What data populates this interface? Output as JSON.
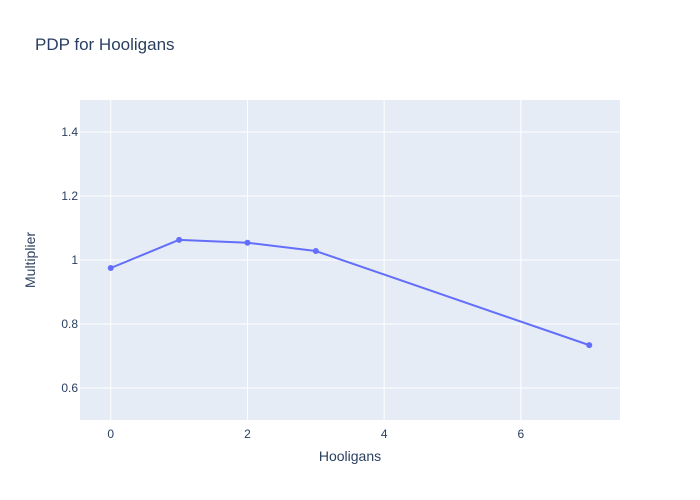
{
  "chart_data": {
    "type": "line",
    "title": "PDP for Hooligans",
    "xlabel": "Hooligans",
    "ylabel": "Multiplier",
    "xlim": [
      -0.45,
      7.45
    ],
    "ylim": [
      0.5,
      1.5
    ],
    "xticks": [
      0,
      2,
      4,
      6
    ],
    "yticks": [
      0.6,
      0.8,
      1,
      1.2,
      1.4
    ],
    "xtick_labels": [
      "0",
      "2",
      "4",
      "6"
    ],
    "ytick_labels": [
      "0.6",
      "0.8",
      "1",
      "1.2",
      "1.4"
    ],
    "grid": true,
    "legend": "none",
    "series": [
      {
        "x": [
          0,
          1,
          2,
          3,
          7
        ],
        "y": [
          0.975,
          1.063,
          1.054,
          1.028,
          0.734
        ],
        "mode": "lines+markers"
      }
    ],
    "colors": {
      "line": "#636efa",
      "plot_bg": "#e5ecf6",
      "grid": "#ffffff",
      "text": "#2a3f5f"
    }
  }
}
